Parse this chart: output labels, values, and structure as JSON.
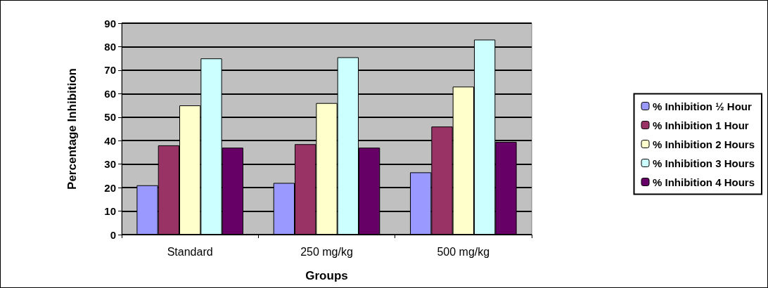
{
  "chart_data": {
    "type": "bar",
    "xlabel": "Groups",
    "ylabel": "Percentage Inhibition",
    "categories": [
      "Standard",
      "250 mg/kg",
      "500 mg/kg"
    ],
    "series": [
      {
        "name": "% Inhibition ½ Hour",
        "color": "#9999ff",
        "values": [
          21,
          22,
          26.5
        ]
      },
      {
        "name": "% Inhibition 1 Hour",
        "color": "#993366",
        "values": [
          38,
          38.5,
          46
        ]
      },
      {
        "name": "% Inhibition 2 Hours",
        "color": "#ffffcc",
        "values": [
          55,
          56,
          63
        ]
      },
      {
        "name": "% Inhibition 3 Hours",
        "color": "#ccffff",
        "values": [
          75,
          75.5,
          83
        ]
      },
      {
        "name": "% Inhibition 4 Hours",
        "color": "#660066",
        "values": [
          37,
          37,
          39.5
        ]
      }
    ],
    "ylim": [
      0,
      90
    ],
    "yticks": [
      0,
      10,
      20,
      30,
      40,
      50,
      60,
      70,
      80,
      90
    ],
    "grid": "y",
    "legend": "right"
  }
}
